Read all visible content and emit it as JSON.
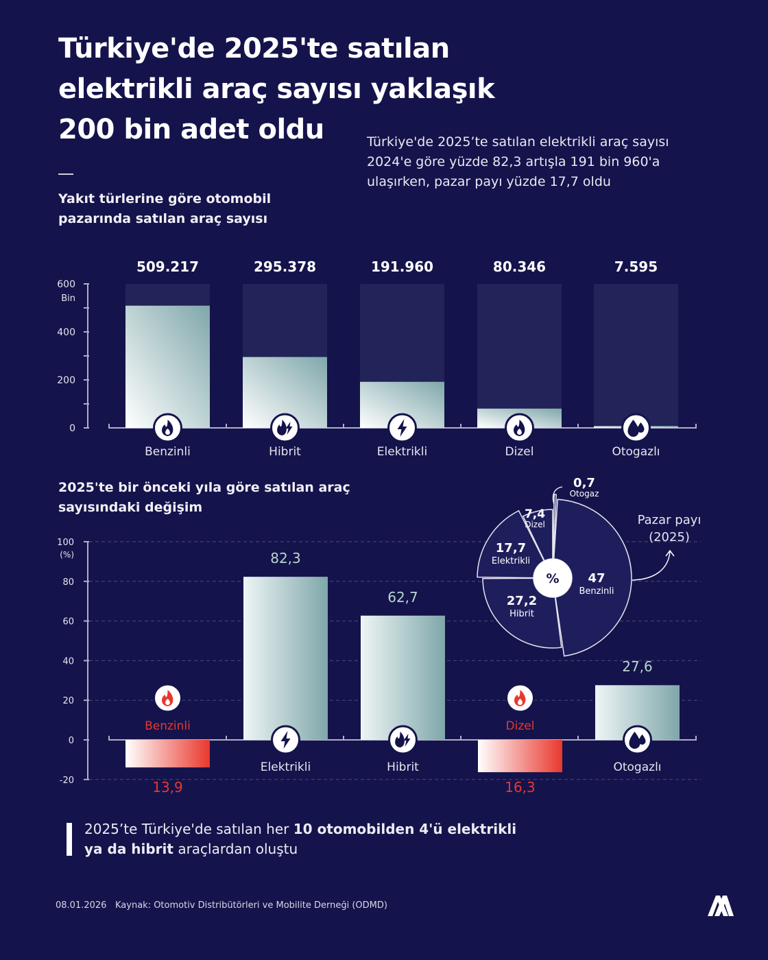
{
  "title": "Türkiye'de 2025'te satılan elektrikli araç sayısı yaklaşık 200 bin adet oldu",
  "subtitle": "Türkiye'de 2025’te satılan elektrikli araç sayısı 2024'e göre yüzde 82,3 artışla 191 bin 960'a ulaşırken, pazar payı yüzde 17,7 oldu",
  "colors": {
    "background": "#15134b",
    "bar_light": "#eef5f5",
    "bar_dark": "#7fa7aa",
    "track": "#222358",
    "negative": "#e8382d",
    "value_green": "#b9d6cf"
  },
  "chart_data": [
    {
      "type": "bar",
      "title": "Yakıt türlerine göre otomobil pazarında satılan araç sayısı",
      "ylabel": "Bin",
      "ylim": [
        0,
        600
      ],
      "yticks": [
        "0",
        "200",
        "400",
        "600"
      ],
      "categories": [
        "Benzinli",
        "Hibrit",
        "Elektrikli",
        "Dizel",
        "Otogazlı"
      ],
      "icons": [
        "flame-icon",
        "hybrid-icon",
        "bolt-icon",
        "flame-icon",
        "drop-icon"
      ],
      "values": [
        509217,
        295378,
        191960,
        80346,
        7595
      ],
      "labels": [
        "509.217",
        "295.378",
        "191.960",
        "80.346",
        "7.595"
      ]
    },
    {
      "type": "bar",
      "title": "2025'te bir önceki yıla göre satılan araç sayısındaki değişim",
      "ylabel": "(%)",
      "ylim": [
        -20,
        100
      ],
      "yticks": [
        "-20",
        "0",
        "20",
        "40",
        "60",
        "80",
        "100"
      ],
      "grid": true,
      "categories": [
        "Benzinli",
        "Elektrikli",
        "Hibrit",
        "Dizel",
        "Otogazlı"
      ],
      "icons": [
        "flame-icon",
        "bolt-icon",
        "hybrid-icon",
        "flame-icon",
        "drop-icon"
      ],
      "values": [
        -13.9,
        82.3,
        62.7,
        -16.3,
        27.6
      ],
      "labels": [
        "13,9",
        "82,3",
        "62,7",
        "16,3",
        "27,6"
      ]
    },
    {
      "type": "pie",
      "title": "Pazar payı (2025)",
      "center_label": "%",
      "categories": [
        "Benzinli",
        "Hibrit",
        "Elektrikli",
        "Dizel",
        "Otogaz"
      ],
      "values": [
        47,
        27.2,
        17.7,
        7.4,
        0.7
      ],
      "labels": [
        "47",
        "27,2",
        "17,7",
        "7,4",
        "0,7"
      ]
    }
  ],
  "note": {
    "pre": "2025’te Türkiye'de satılan her ",
    "bold1": "10 otomobilden 4'ü elektrikli ya da hibrit",
    "post": " araçlardan oluştu"
  },
  "footer": {
    "date": "08.01.2026",
    "source": "Kaynak: Otomotiv Distribütörleri ve Mobilite Derneği (ODMD)",
    "logo": "AA"
  }
}
